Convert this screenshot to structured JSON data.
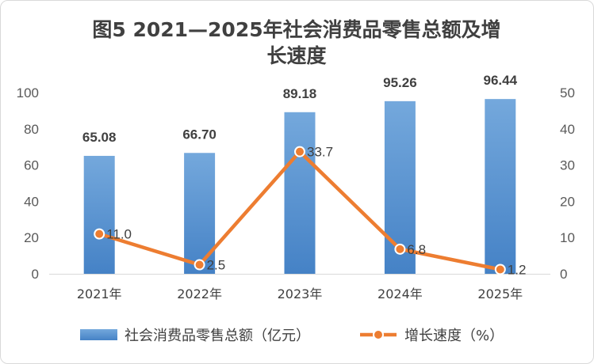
{
  "chart_data": {
    "type": "bar",
    "title_line1": "图5 2021—2025年社会消费品零售总额及增",
    "title_line2": "长速度",
    "categories": [
      "2021年",
      "2022年",
      "2023年",
      "2024年",
      "2025年"
    ],
    "series": [
      {
        "name": "社会消费品零售总额（亿元）",
        "type": "bar",
        "axis": "left",
        "values": [
          65.08,
          66.7,
          89.18,
          95.26,
          96.44
        ],
        "labels": [
          "65.08",
          "66.70",
          "89.18",
          "95.26",
          "96.44"
        ],
        "color": "#5b9bd5"
      },
      {
        "name": "增长速度（%）",
        "type": "line",
        "axis": "right",
        "values": [
          11.0,
          2.5,
          33.7,
          6.8,
          1.2
        ],
        "labels": [
          "11.0",
          "2.5",
          "33.7",
          "6.8",
          "1.2"
        ],
        "color": "#ed7d31"
      }
    ],
    "ylim_left": [
      0,
      100
    ],
    "yticks_left": [
      "0",
      "20",
      "40",
      "60",
      "80",
      "100"
    ],
    "ylim_right": [
      0,
      50
    ],
    "yticks_right": [
      "0",
      "10",
      "20",
      "30",
      "40",
      "50"
    ],
    "grid": false,
    "legend_position": "bottom"
  }
}
